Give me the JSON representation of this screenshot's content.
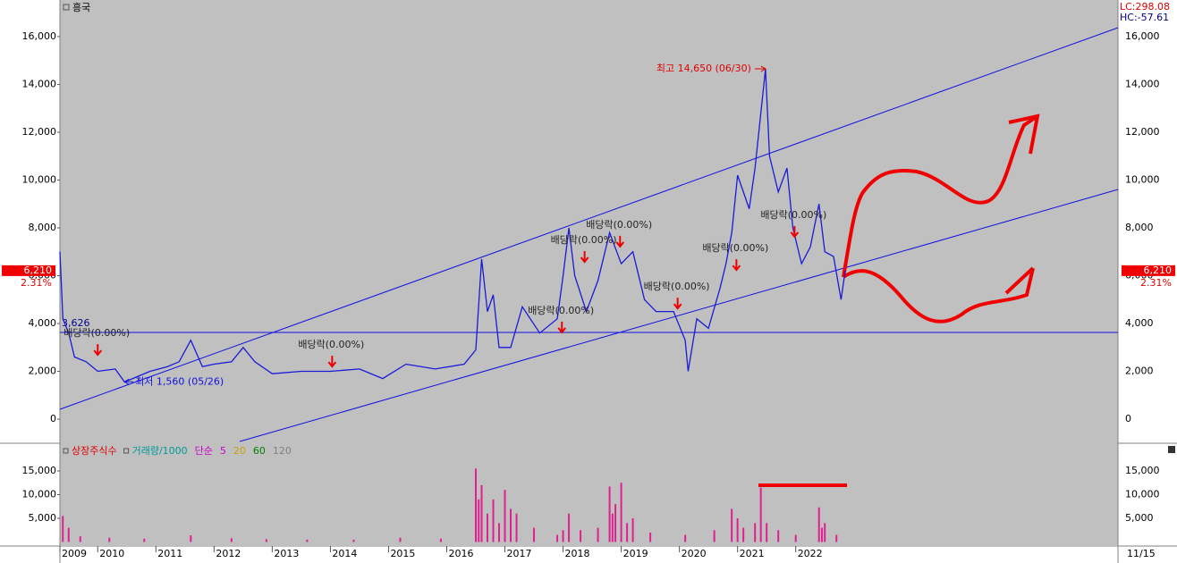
{
  "header": {
    "title": "흥국",
    "lc": "LC:298.08",
    "hc": "HC:-57.61",
    "date": "11/15"
  },
  "chart_data": [
    {
      "type": "line",
      "series": [
        {
          "color": "#1a1ad8",
          "x": [
            2009.35,
            2009.4,
            2009.5,
            2009.6,
            2009.8,
            2010.0,
            2010.3,
            2010.46,
            2010.6,
            2010.9,
            2011.2,
            2011.4,
            2011.6,
            2011.8,
            2012.0,
            2012.3,
            2012.5,
            2012.7,
            2013.0,
            2013.5,
            2014.0,
            2014.5,
            2014.9,
            2015.3,
            2015.8,
            2016.3,
            2016.5,
            2016.6,
            2016.7,
            2016.8,
            2016.9,
            2017.1,
            2017.3,
            2017.6,
            2017.9,
            2018.0,
            2018.1,
            2018.2,
            2018.4,
            2018.6,
            2018.8,
            2019.0,
            2019.2,
            2019.4,
            2019.6,
            2019.9,
            2020.1,
            2020.15,
            2020.3,
            2020.5,
            2020.7,
            2020.8,
            2020.9,
            2021.0,
            2021.2,
            2021.3,
            2021.48,
            2021.55,
            2021.7,
            2021.85,
            2021.95,
            2022.1,
            2022.25,
            2022.4,
            2022.5,
            2022.65,
            2022.78,
            2022.85
          ],
          "values": [
            7000,
            4200,
            3600,
            2600,
            2400,
            2000,
            2100,
            1560,
            1700,
            2000,
            2200,
            2400,
            3300,
            2200,
            2300,
            2400,
            3000,
            2400,
            1900,
            2000,
            2000,
            2100,
            1700,
            2300,
            2100,
            2300,
            2900,
            6700,
            4500,
            5200,
            3000,
            3000,
            4700,
            3600,
            4200,
            6000,
            8000,
            6000,
            4500,
            5800,
            7800,
            6500,
            7000,
            5000,
            4500,
            4500,
            3300,
            2000,
            4200,
            3800,
            5500,
            6500,
            7800,
            10200,
            8800,
            10500,
            14650,
            11000,
            9500,
            10500,
            8000,
            6500,
            7200,
            9000,
            7000,
            6800,
            5000,
            6210
          ]
        }
      ],
      "xlim": [
        2009.35,
        2027.54
      ],
      "xticks": [
        {
          "value": 2009.35,
          "label": "2009"
        },
        2010,
        2011,
        2012,
        2013,
        2014,
        2015,
        2016,
        2017,
        2018,
        2019,
        2020,
        2021,
        2022
      ],
      "ylim": [
        -970,
        17530
      ],
      "yticks": [
        0,
        {
          "value": 2000,
          "label": "2,000"
        },
        {
          "value": 4000,
          "label": "4,000"
        },
        {
          "value": 6000,
          "label": "6,000"
        },
        {
          "value": 8000,
          "label": "8,000"
        },
        {
          "value": 10000,
          "label": "10,000"
        },
        {
          "value": 12000,
          "label": "12,000"
        },
        {
          "value": 14000,
          "label": "14,000"
        },
        {
          "value": 16000,
          "label": "16,000"
        }
      ],
      "hline": {
        "value": 3626,
        "label": "3,626"
      },
      "high": {
        "label": "최고 14,650 (06/30)",
        "x": 2021.48,
        "value": 14650
      },
      "low": {
        "label": "최저 1,560 (05/26)",
        "x": 2010.46,
        "value": 1560
      },
      "last": {
        "value": 6210,
        "label": "6,210",
        "change": "2.31%"
      },
      "dividends": [
        {
          "label": "배당락(0.00%)",
          "x": 2010.0,
          "value": 2690
        },
        {
          "label": "배당락(0.00%)",
          "x": 2014.03,
          "value": 2200
        },
        {
          "label": "배당락(0.00%)",
          "x": 2017.98,
          "value": 3630
        },
        {
          "label": "배당락(0.00%)",
          "x": 2018.37,
          "value": 6580
        },
        {
          "label": "배당락(0.00%)",
          "x": 2018.98,
          "value": 7220
        },
        {
          "label": "배당락(0.00%)",
          "x": 2019.97,
          "value": 4630
        },
        {
          "label": "배당락(0.00%)",
          "x": 2020.98,
          "value": 6240
        },
        {
          "label": "배당락(0.00%)",
          "x": 2021.98,
          "value": 7630
        }
      ]
    },
    {
      "type": "bar",
      "legend": [
        {
          "name": "상장주식수",
          "color": "#e00000"
        },
        {
          "name": "거래량/1000",
          "color": "#009999"
        },
        {
          "name": "단순",
          "color": "#cc00cc"
        },
        {
          "name": "5",
          "color": "#cc00cc"
        },
        {
          "name": "20",
          "color": "#c8a000"
        },
        {
          "name": "60",
          "color": "#008000"
        },
        {
          "name": "120",
          "color": "#808080"
        }
      ],
      "series": [
        {
          "color": "#e0208f",
          "x": [
            2009.4,
            2009.5,
            2009.7,
            2010.2,
            2010.8,
            2011.6,
            2012.3,
            2012.9,
            2013.6,
            2014.4,
            2015.2,
            2015.9,
            2016.5,
            2016.55,
            2016.6,
            2016.7,
            2016.8,
            2016.9,
            2017.0,
            2017.1,
            2017.2,
            2017.5,
            2017.9,
            2018.0,
            2018.1,
            2018.3,
            2018.6,
            2018.8,
            2018.85,
            2018.9,
            2019.0,
            2019.1,
            2019.2,
            2019.5,
            2020.1,
            2020.6,
            2020.9,
            2021.0,
            2021.1,
            2021.3,
            2021.4,
            2021.5,
            2021.7,
            2022.0,
            2022.4,
            2022.45,
            2022.5,
            2022.7
          ],
          "values": [
            5500,
            3000,
            1200,
            900,
            700,
            1400,
            800,
            600,
            500,
            500,
            900,
            700,
            15500,
            9000,
            12000,
            6000,
            9000,
            4000,
            11000,
            7000,
            6000,
            3000,
            1500,
            2500,
            6000,
            2500,
            3000,
            11700,
            6000,
            8000,
            12500,
            4000,
            5000,
            2000,
            1500,
            2500,
            7000,
            5000,
            3000,
            4000,
            11500,
            4000,
            2500,
            1500,
            7300,
            3000,
            4000,
            1500
          ]
        }
      ],
      "ylim": [
        -660,
        20660
      ],
      "yticks": [
        {
          "value": 5000,
          "label": "5,000"
        },
        {
          "value": 10000,
          "label": "10,000"
        },
        {
          "value": 15000,
          "label": "15,000"
        }
      ]
    }
  ]
}
